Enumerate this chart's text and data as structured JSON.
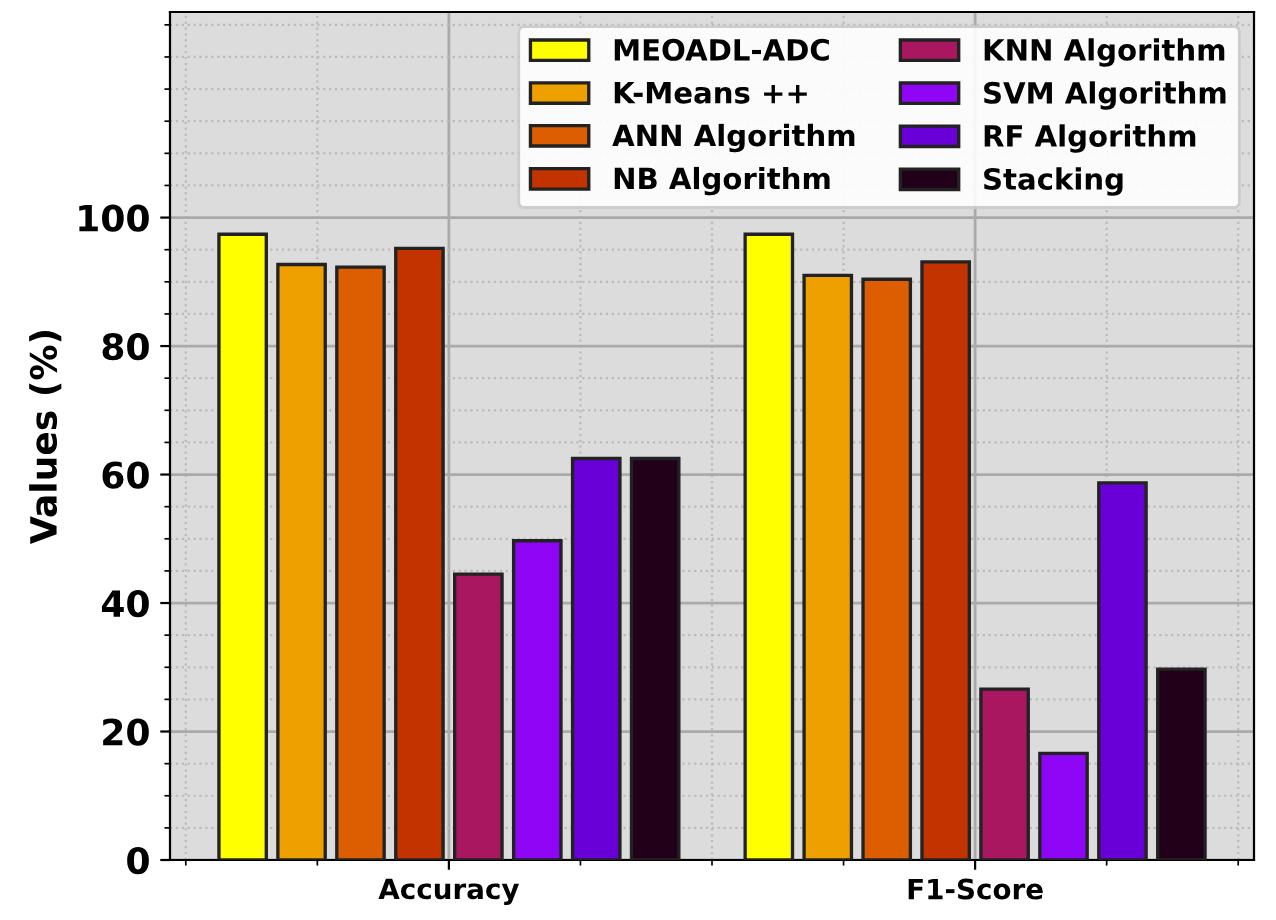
{
  "chart_data": {
    "type": "bar",
    "ylabel": "Values (%)",
    "categories": [
      "Accuracy",
      "F1-Score"
    ],
    "series": [
      {
        "name": "MEOADL-ADC",
        "color": "#ffff00",
        "values": [
          97.4,
          97.4
        ]
      },
      {
        "name": "K-Means ++",
        "color": "#eda000",
        "values": [
          92.7,
          91.0
        ]
      },
      {
        "name": "ANN Algorithm",
        "color": "#dc5e00",
        "values": [
          92.3,
          90.4
        ]
      },
      {
        "name": "NB Algorithm",
        "color": "#c23300",
        "values": [
          95.2,
          93.1
        ]
      },
      {
        "name": "KNN Algorithm",
        "color": "#a8175f",
        "values": [
          44.5,
          26.6
        ]
      },
      {
        "name": "SVM Algorithm",
        "color": "#8f05f5",
        "values": [
          49.7,
          16.6
        ]
      },
      {
        "name": "RF Algorithm",
        "color": "#6a00d8",
        "values": [
          62.5,
          58.7
        ]
      },
      {
        "name": "Stacking",
        "color": "#22001a",
        "values": [
          62.5,
          29.7
        ]
      }
    ],
    "ylim": [
      0,
      132
    ],
    "yticks": [
      0,
      20,
      40,
      60,
      80,
      100
    ],
    "grid": true,
    "legend": "top right"
  }
}
